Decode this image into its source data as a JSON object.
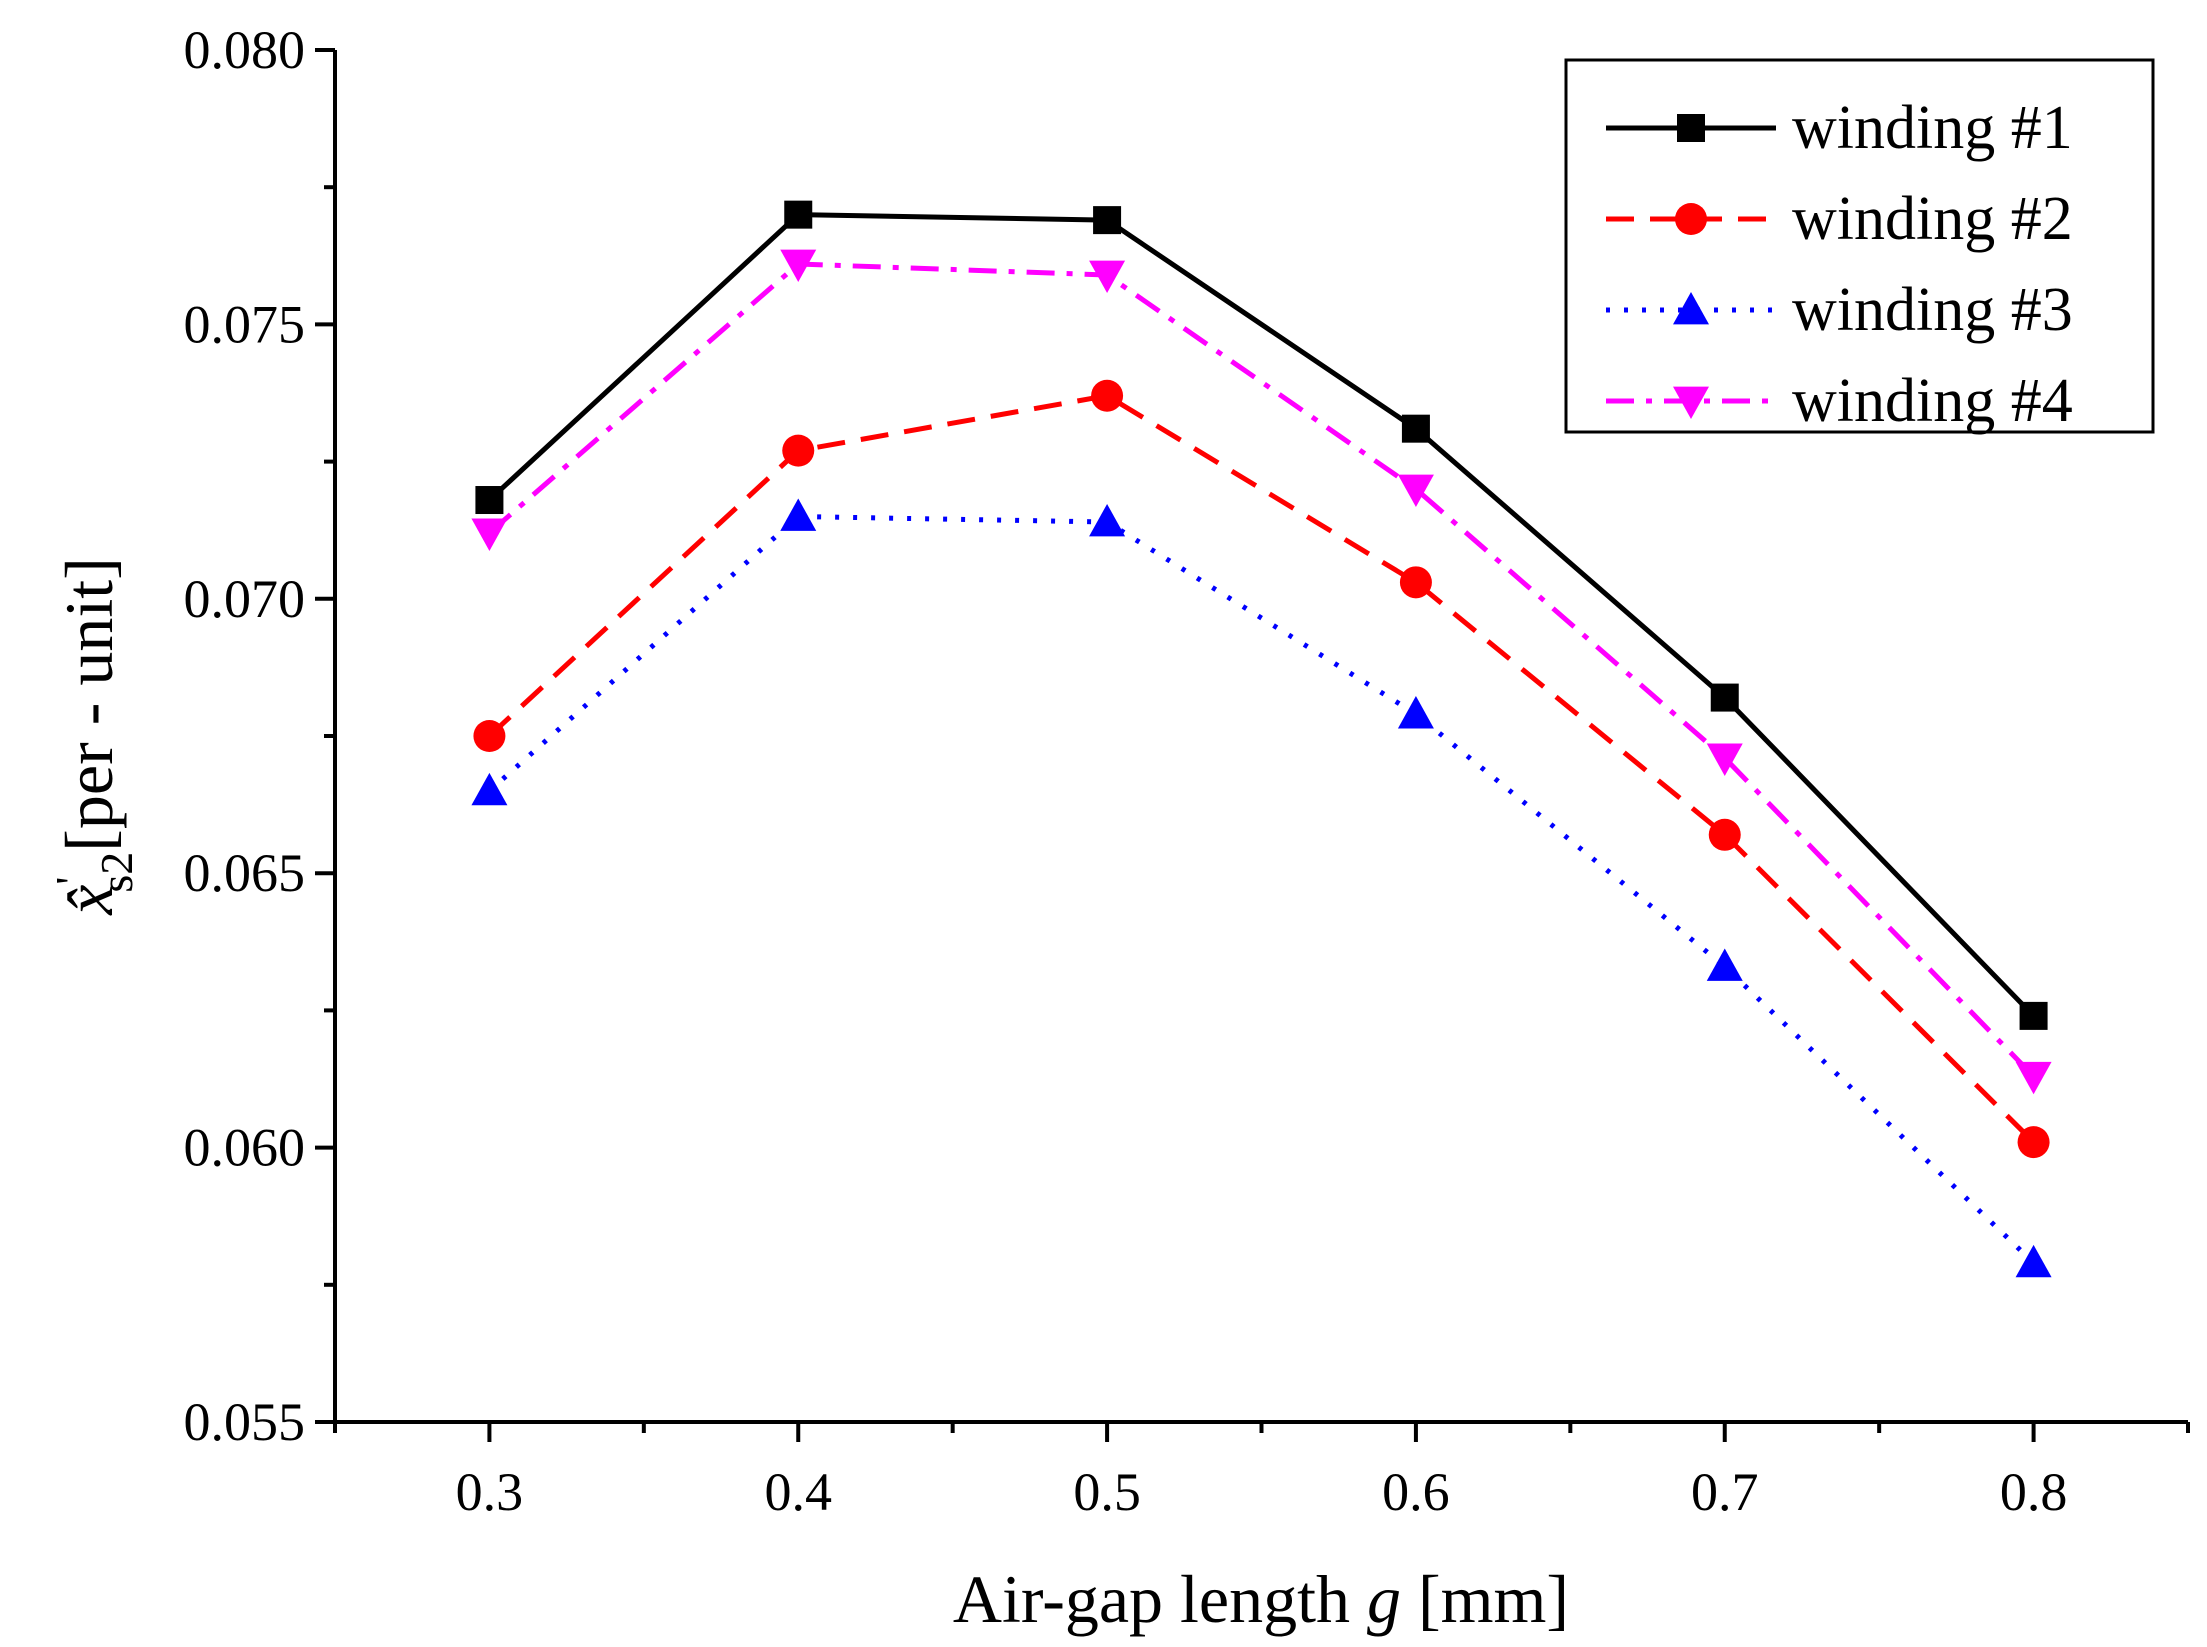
{
  "chart_data": {
    "type": "line",
    "title": "",
    "xlabel": "Air-gap length",
    "xlabel_var": "g",
    "xlabel_unit": "[mm]",
    "ylabel_symbol": "x̂",
    "ylabel_prime": "'",
    "ylabel_sub": "s2",
    "ylabel_unit": "[per - unit]",
    "x": [
      0.3,
      0.4,
      0.5,
      0.6,
      0.7,
      0.8
    ],
    "xlim": [
      0.25,
      0.85
    ],
    "ylim": [
      0.055,
      0.08
    ],
    "xticks": [
      "0.3",
      "0.4",
      "0.5",
      "0.6",
      "0.7",
      "0.8"
    ],
    "yticks": [
      "0.055",
      "0.060",
      "0.065",
      "0.070",
      "0.075",
      "0.080"
    ],
    "legend_position": "top-right",
    "grid": false,
    "series": [
      {
        "name": "winding #1",
        "color": "#000000",
        "dash": "solid",
        "marker": "square",
        "values": [
          0.0718,
          0.077,
          0.0769,
          0.0731,
          0.0682,
          0.0624
        ]
      },
      {
        "name": "winding #2",
        "color": "#ff0000",
        "dash": "dashed",
        "marker": "circle",
        "values": [
          0.0675,
          0.0727,
          0.0737,
          0.0703,
          0.0657,
          0.0601
        ]
      },
      {
        "name": "winding #3",
        "color": "#0000ff",
        "dash": "dotted",
        "marker": "triangle-up",
        "values": [
          0.0665,
          0.0715,
          0.0714,
          0.0679,
          0.0633,
          0.0579
        ]
      },
      {
        "name": "winding #4",
        "color": "#ff00ff",
        "dash": "dashdot",
        "marker": "triangle-down",
        "values": [
          0.0712,
          0.0761,
          0.0759,
          0.072,
          0.0671,
          0.0613
        ]
      }
    ]
  }
}
